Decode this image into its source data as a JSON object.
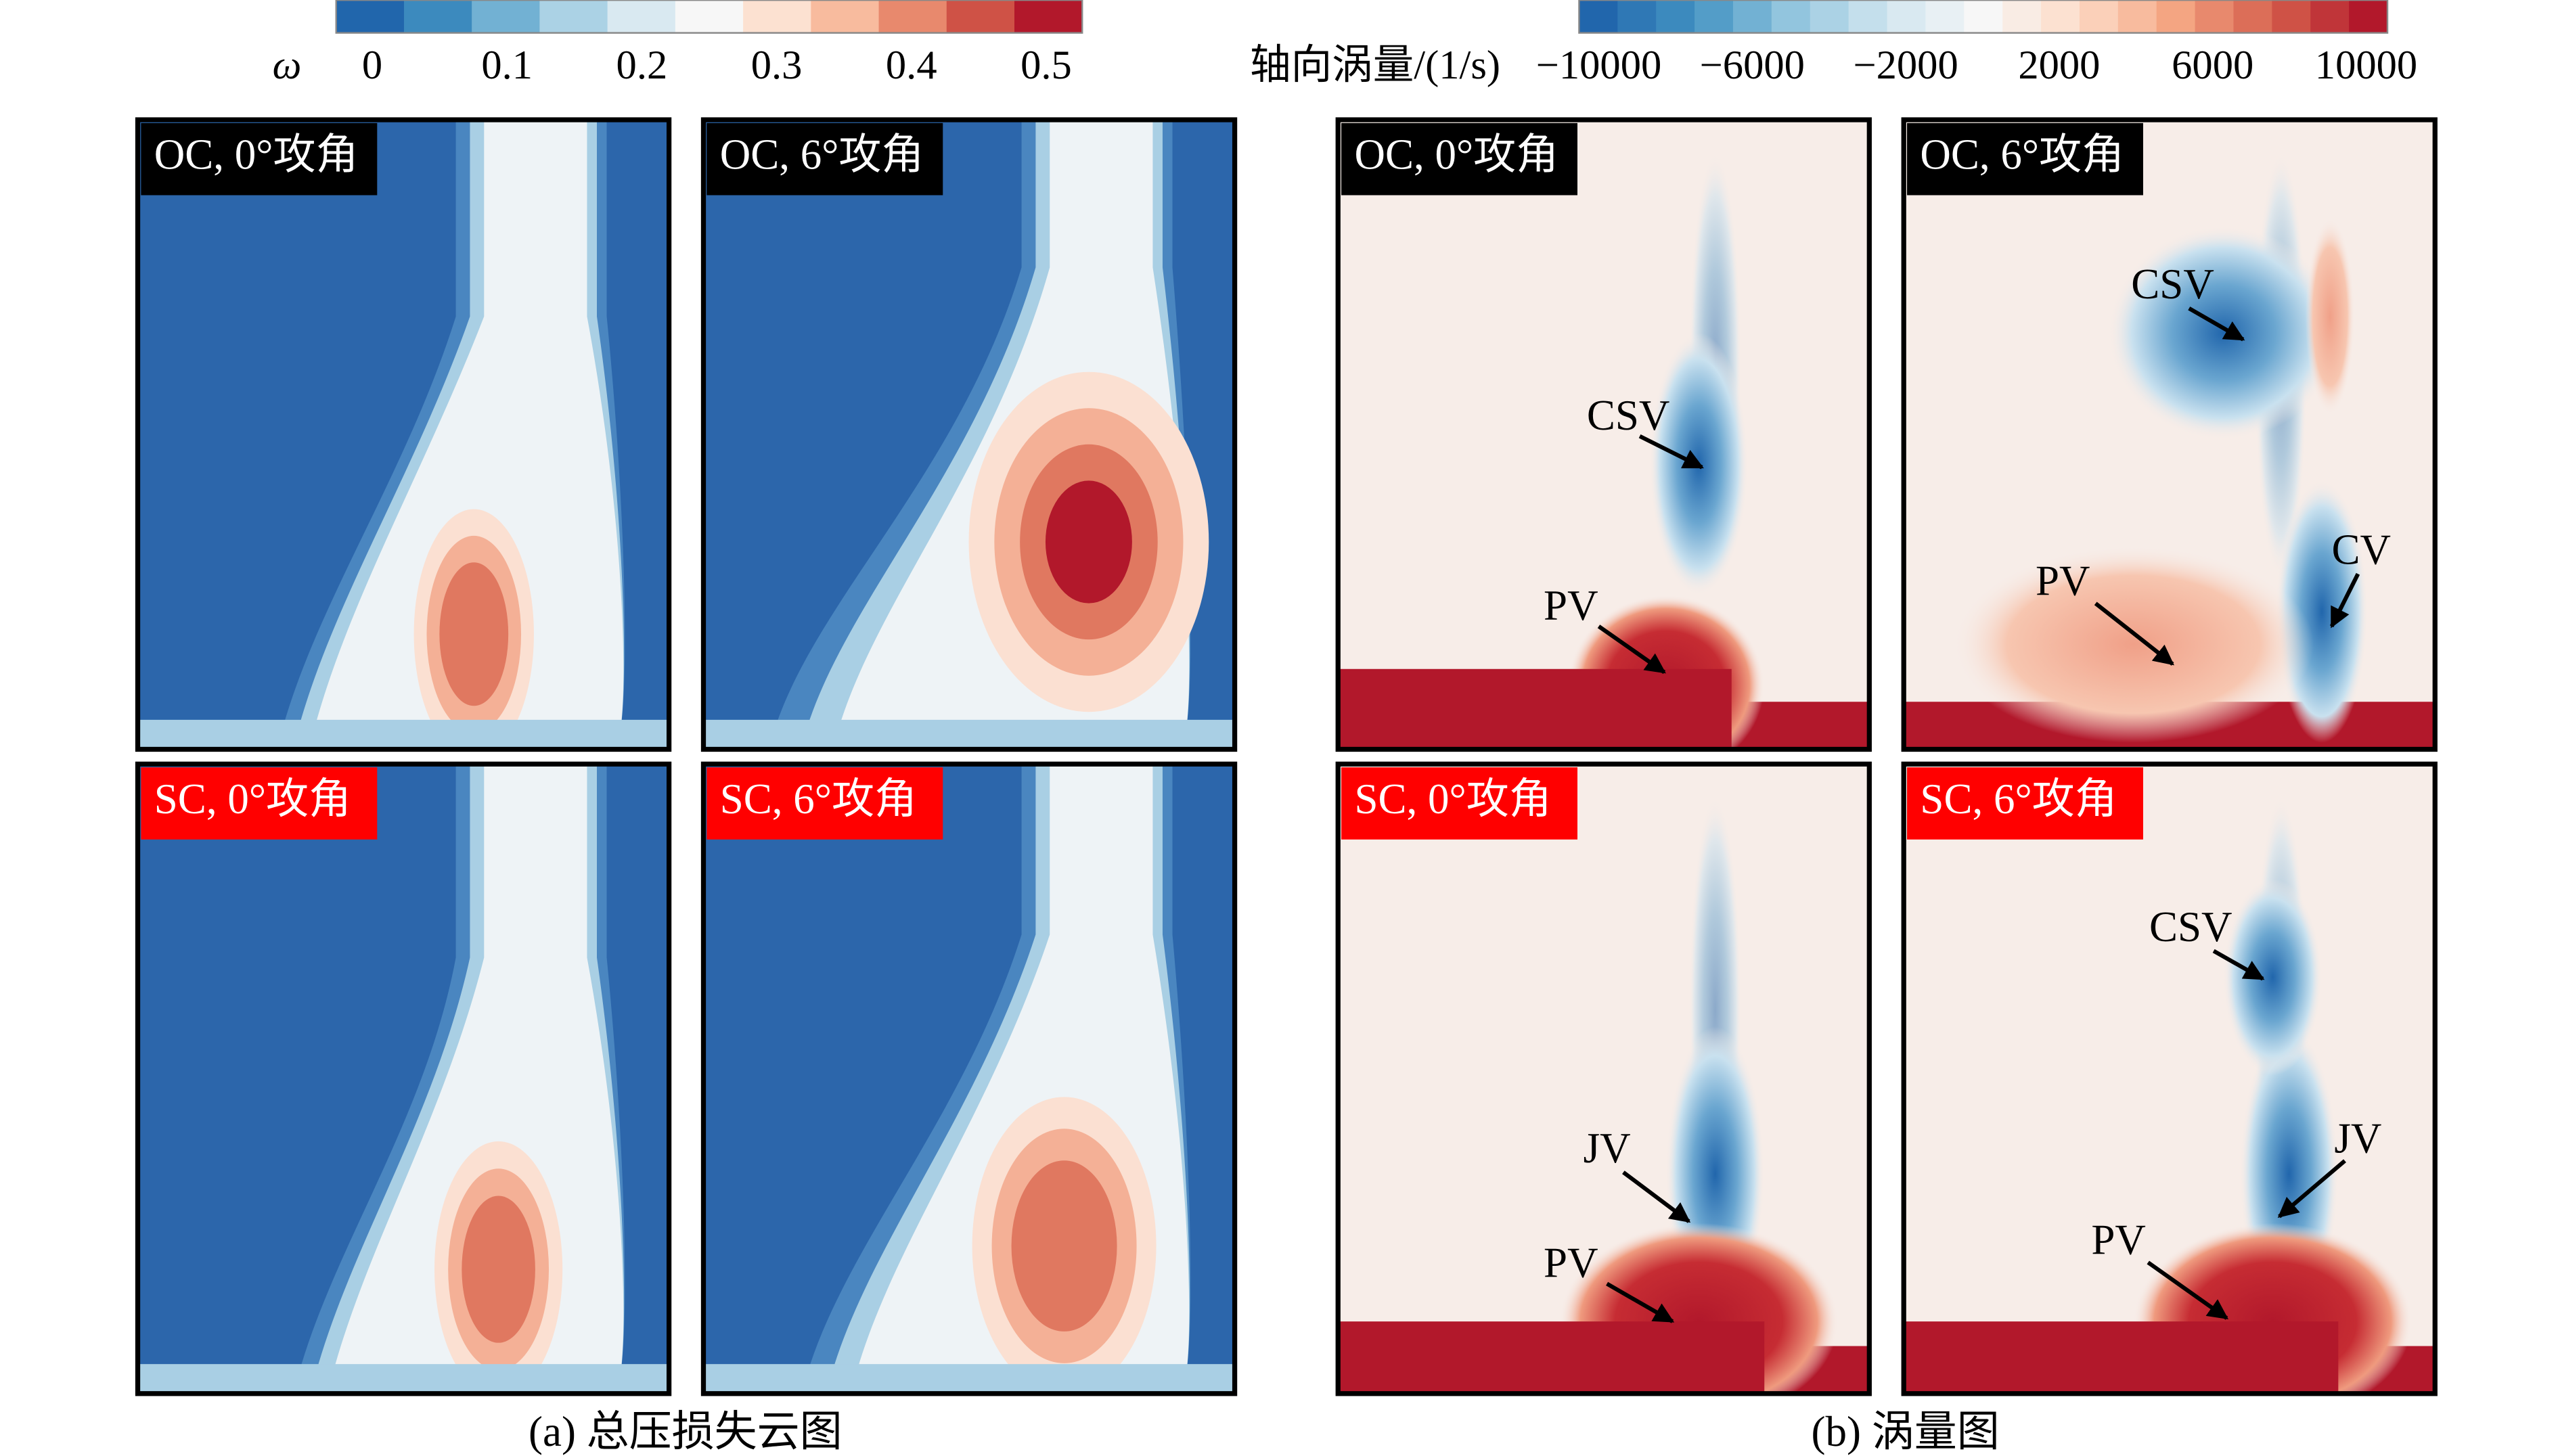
{
  "colorbars": [
    {
      "symbol": "ω",
      "ticks": [
        "0",
        "0.1",
        "0.2",
        "0.3",
        "0.4",
        "0.5"
      ]
    },
    {
      "title": "轴向涡量/(1/s)",
      "ticks": [
        "−10000",
        "−6000",
        "−2000",
        "2000",
        "6000",
        "10000"
      ]
    }
  ],
  "panels": [
    {
      "label": "OC, 0°攻角"
    },
    {
      "label": "OC, 6°攻角"
    },
    {
      "label": "SC, 0°攻角"
    },
    {
      "label": "SC, 6°攻角"
    },
    {
      "label": "OC, 0°攻角",
      "annotations": [
        "CSV",
        "PV"
      ]
    },
    {
      "label": "OC, 6°攻角",
      "annotations": [
        "CSV",
        "CV",
        "PV"
      ]
    },
    {
      "label": "SC, 0°攻角",
      "annotations": [
        "JV",
        "PV"
      ]
    },
    {
      "label": "SC, 6°攻角",
      "annotations": [
        "CSV",
        "JV",
        "PV"
      ]
    }
  ],
  "captions": [
    "(a) 总压损失云图",
    "(b) 涡量图"
  ]
}
